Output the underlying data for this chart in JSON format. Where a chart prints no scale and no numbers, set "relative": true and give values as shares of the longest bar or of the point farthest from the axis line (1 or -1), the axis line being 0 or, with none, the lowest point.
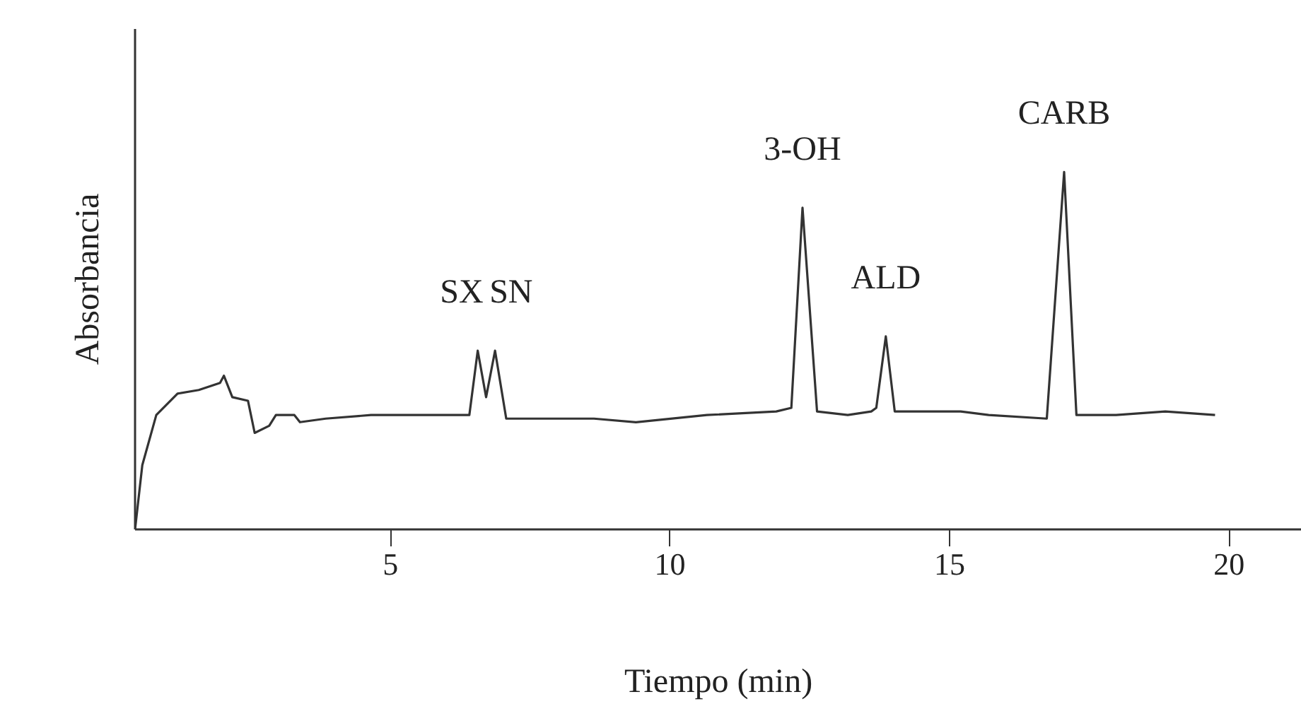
{
  "chart_data": {
    "type": "line",
    "relative": true,
    "xlabel": "Tiempo (min)",
    "ylabel": "Absorbancia",
    "xlim": [
      0.43,
      21.3
    ],
    "xticks": [
      5,
      10,
      15,
      20
    ],
    "grid": false,
    "marker": "none",
    "line_style": "solid",
    "series": [
      {
        "color": "#333333",
        "x": [
          0.43,
          0.56,
          0.81,
          1.19,
          1.57,
          1.95,
          2.02,
          2.17,
          2.45,
          2.57,
          2.83,
          2.95,
          3.28,
          3.38,
          3.84,
          4.65,
          5.6,
          6.41,
          6.56,
          6.71,
          6.87,
          7.07,
          8.64,
          9.39,
          10.66,
          11.9,
          12.17,
          12.37,
          12.63,
          13.18,
          13.6,
          13.69,
          13.86,
          14.02,
          15.2,
          15.7,
          16.74,
          17.05,
          17.27,
          17.98,
          18.86,
          19.75
        ],
        "values": [
          0,
          0.18,
          0.32,
          0.38,
          0.39,
          0.41,
          0.43,
          0.37,
          0.36,
          0.27,
          0.29,
          0.32,
          0.32,
          0.3,
          0.31,
          0.32,
          0.32,
          0.32,
          0.5,
          0.37,
          0.5,
          0.31,
          0.31,
          0.3,
          0.32,
          0.33,
          0.34,
          0.9,
          0.33,
          0.32,
          0.33,
          0.34,
          0.54,
          0.33,
          0.33,
          0.32,
          0.31,
          1.0,
          0.32,
          0.32,
          0.33,
          0.32
        ]
      }
    ],
    "annotations": [
      {
        "text": "SX",
        "x": 6.56,
        "y": 0.5
      },
      {
        "text": "SN",
        "x": 6.87,
        "y": 0.5
      },
      {
        "text": "3-OH",
        "x": 12.37,
        "y": 0.9
      },
      {
        "text": "ALD",
        "x": 13.86,
        "y": 0.54
      },
      {
        "text": "CARB",
        "x": 17.05,
        "y": 1.0
      }
    ]
  }
}
